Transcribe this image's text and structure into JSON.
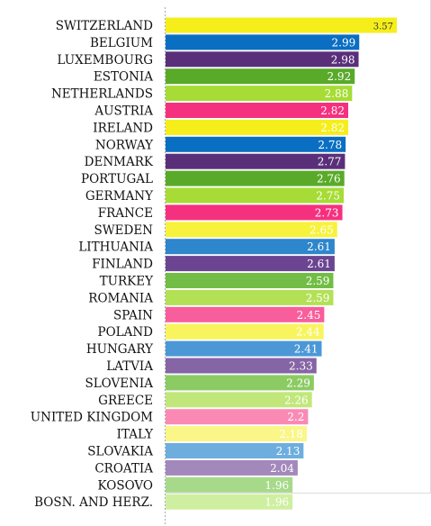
{
  "chart_data": {
    "type": "bar",
    "orientation": "horizontal",
    "title": "",
    "xlabel": "",
    "ylabel": "",
    "xlim": [
      0,
      3.57
    ],
    "grid": false,
    "categories": [
      "SWITZERLAND",
      "BELGIUM",
      "LUXEMBOURG",
      "ESTONIA",
      "NETHERLANDS",
      "AUSTRIA",
      "IRELAND",
      "NORWAY",
      "DENMARK",
      "PORTUGAL",
      "GERMANY",
      "FRANCE",
      "SWEDEN",
      "LITHUANIA",
      "FINLAND",
      "TURKEY",
      "ROMANIA",
      "SPAIN",
      "POLAND",
      "HUNGARY",
      "LATVIA",
      "SLOVENIA",
      "GREECE",
      "UNITED KINGDOM",
      "ITALY",
      "SLOVAKIA",
      "CROATIA",
      "KOSOVO",
      "BOSN. AND HERZ."
    ],
    "values": [
      3.57,
      2.99,
      2.98,
      2.92,
      2.88,
      2.82,
      2.82,
      2.78,
      2.77,
      2.76,
      2.75,
      2.73,
      2.65,
      2.61,
      2.61,
      2.59,
      2.59,
      2.45,
      2.44,
      2.41,
      2.33,
      2.29,
      2.26,
      2.2,
      2.18,
      2.13,
      2.04,
      1.96,
      1.96
    ],
    "value_labels": [
      "3.57",
      "2.99",
      "2.98",
      "2.92",
      "2.88",
      "2.82",
      "2.82",
      "2.78",
      "2.77",
      "2.76",
      "2.75",
      "2.73",
      "2.65",
      "2.61",
      "2.61",
      "2.59",
      "2.59",
      "2.45",
      "2.44",
      "2.41",
      "2.33",
      "2.29",
      "2.26",
      "2.2",
      "2.18",
      "2.13",
      "2.04",
      "1.96",
      "1.96"
    ],
    "colors": [
      "#f5ee1b",
      "#0a6fc2",
      "#5a2f7a",
      "#5aaa2a",
      "#a6dc35",
      "#f5317f",
      "#f5ee1b",
      "#0a6fc2",
      "#5a2f7a",
      "#5aaa2a",
      "#a6dc35",
      "#f5317f",
      "#f7f23c",
      "#2e86cc",
      "#6b4591",
      "#72bd45",
      "#b3e156",
      "#f85e9b",
      "#f8f45d",
      "#4c98d6",
      "#8665a6",
      "#8ccb63",
      "#c1e77a",
      "#fa8ab4",
      "#faf688",
      "#6eaede",
      "#a388bc",
      "#a7d98a",
      "#cfefa0"
    ],
    "value_label_color": "#ffffff",
    "axis_color": "#aaaaaa",
    "panel_border_color": "#dddddd"
  }
}
